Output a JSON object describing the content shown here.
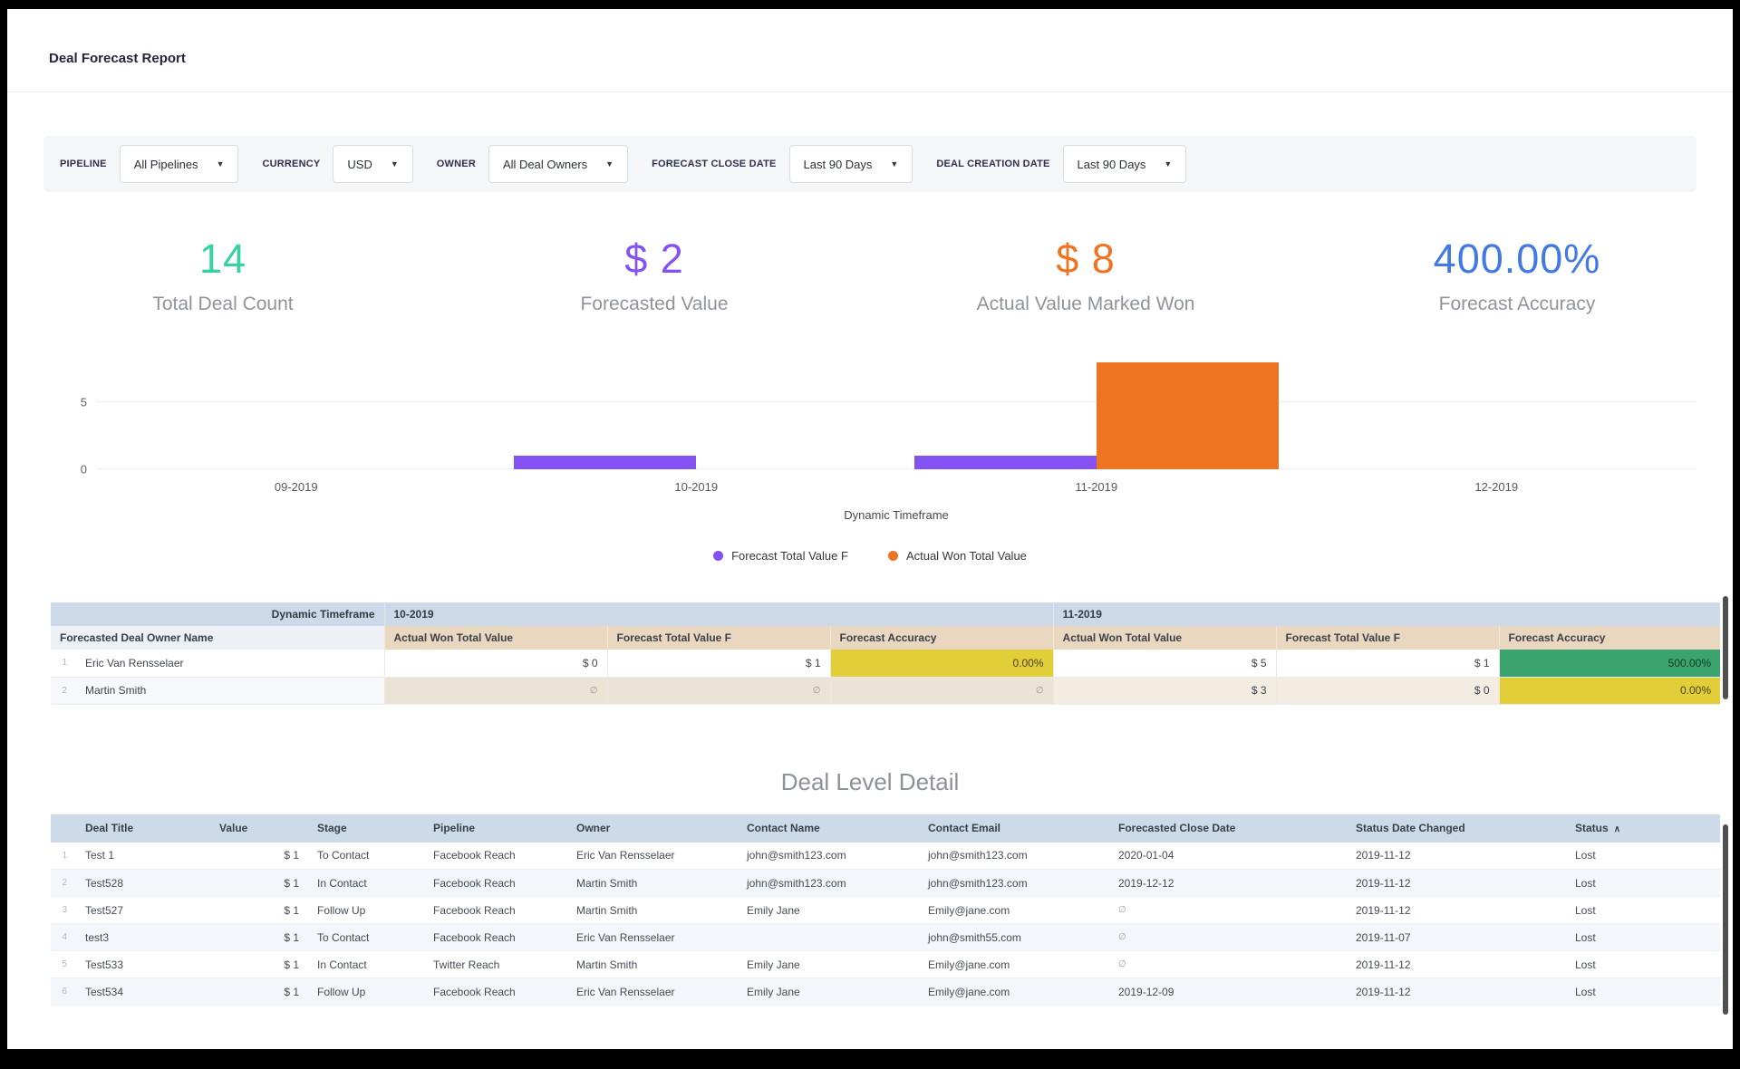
{
  "header": {
    "title": "Deal Forecast Report"
  },
  "filters": [
    {
      "label": "PIPELINE",
      "value": "All Pipelines"
    },
    {
      "label": "CURRENCY",
      "value": "USD"
    },
    {
      "label": "OWNER",
      "value": "All Deal Owners"
    },
    {
      "label": "FORECAST CLOSE DATE",
      "value": "Last 90 Days"
    },
    {
      "label": "DEAL CREATION DATE",
      "value": "Last 90 Days"
    }
  ],
  "kpis": [
    {
      "value": "14",
      "label": "Total Deal Count",
      "color": "#38d1a0"
    },
    {
      "value": "$ 2",
      "label": "Forecasted Value",
      "color": "#8352f0"
    },
    {
      "value": "$ 8",
      "label": "Actual Value Marked Won",
      "color": "#ee7421"
    },
    {
      "value": "400.00%",
      "label": "Forecast Accuracy",
      "color": "#4379e4"
    }
  ],
  "chart_data": {
    "type": "bar",
    "categories": [
      "09-2019",
      "10-2019",
      "11-2019",
      "12-2019"
    ],
    "series": [
      {
        "name": "Forecast Total Value F",
        "color": "#8352f0",
        "values": [
          0,
          1,
          1,
          0
        ]
      },
      {
        "name": "Actual Won Total Value",
        "color": "#ee7421",
        "values": [
          0,
          0,
          8,
          0
        ]
      }
    ],
    "title": "",
    "xlabel": "Dynamic Timeframe",
    "ylabel": "",
    "yticks": [
      0,
      5
    ],
    "ylim": [
      0,
      8.8
    ],
    "grid": true,
    "legend_position": "bottom"
  },
  "pivot": {
    "corner_label": "Dynamic Timeframe",
    "groups": [
      "10-2019",
      "11-2019"
    ],
    "row_dim_label": "Forecasted Deal Owner Name",
    "measures": [
      "Actual Won Total Value",
      "Forecast Total Value F",
      "Forecast Accuracy"
    ],
    "rows": [
      {
        "num": "1",
        "name": "Eric Van Rensselaer",
        "cells": [
          {
            "text": "$ 0"
          },
          {
            "text": "$ 1"
          },
          {
            "text": "0.00%",
            "bg": "#e2ce39",
            "fg": "#4a4416"
          },
          {
            "text": "$ 5"
          },
          {
            "text": "$ 1"
          },
          {
            "text": "500.00%",
            "bg": "#3ba36d",
            "fg": "#0f3d24"
          }
        ]
      },
      {
        "num": "2",
        "name": "Martin Smith",
        "cells": [
          {
            "text": "∅"
          },
          {
            "text": "∅"
          },
          {
            "text": "∅"
          },
          {
            "text": "$ 3"
          },
          {
            "text": "$ 0"
          },
          {
            "text": "0.00%",
            "bg": "#e2ce39",
            "fg": "#4a4416"
          }
        ]
      }
    ]
  },
  "deal_table": {
    "title": "Deal Level Detail",
    "columns": [
      "Deal Title",
      "Value",
      "Stage",
      "Pipeline",
      "Owner",
      "Contact Name",
      "Contact Email",
      "Forecasted Close Date",
      "Status Date Changed",
      "Status"
    ],
    "sort_column": "Status",
    "sort_icon": "∧",
    "rows": [
      [
        "1",
        "Test 1",
        "$ 1",
        "To Contact",
        "Facebook Reach",
        "Eric Van Rensselaer",
        "john@smith123.com",
        "john@smith123.com",
        "2020-01-04",
        "2019-11-12",
        "Lost"
      ],
      [
        "2",
        "Test528",
        "$ 1",
        "In Contact",
        "Facebook Reach",
        "Martin Smith",
        "john@smith123.com",
        "john@smith123.com",
        "2019-12-12",
        "2019-11-12",
        "Lost"
      ],
      [
        "3",
        "Test527",
        "$ 1",
        "Follow Up",
        "Facebook Reach",
        "Martin Smith",
        "Emily Jane",
        "Emily@jane.com",
        "∅",
        "2019-11-12",
        "Lost"
      ],
      [
        "4",
        "test3",
        "$ 1",
        "To Contact",
        "Facebook Reach",
        "Eric Van Rensselaer",
        "",
        "john@smith55.com",
        "∅",
        "2019-11-07",
        "Lost"
      ],
      [
        "5",
        "Test533",
        "$ 1",
        "In Contact",
        "Twitter Reach",
        "Martin Smith",
        "Emily Jane",
        "Emily@jane.com",
        "∅",
        "2019-11-12",
        "Lost"
      ],
      [
        "6",
        "Test534",
        "$ 1",
        "Follow Up",
        "Facebook Reach",
        "Eric Van Rensselaer",
        "Emily Jane",
        "Emily@jane.com",
        "2019-12-09",
        "2019-11-12",
        "Lost"
      ]
    ]
  }
}
